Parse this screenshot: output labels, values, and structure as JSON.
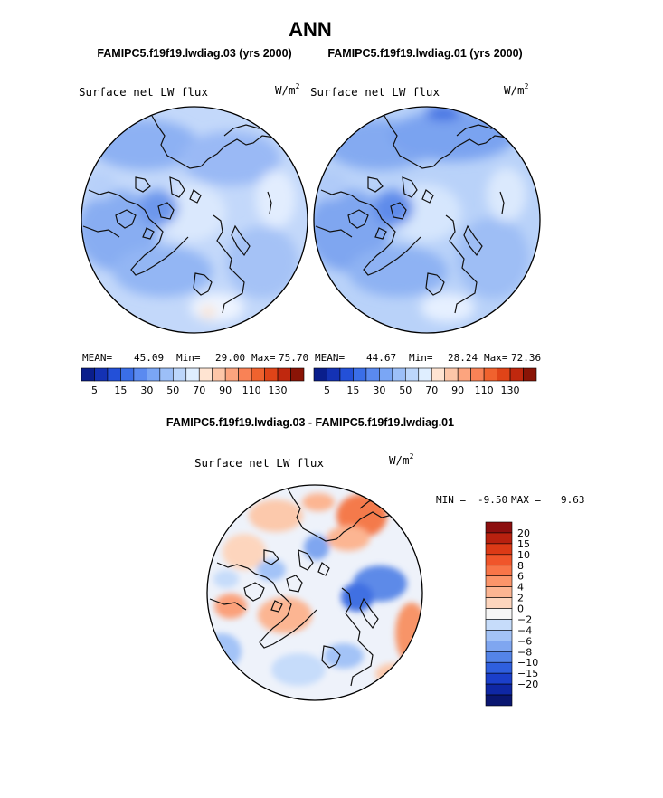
{
  "figure": {
    "title": "ANN",
    "left_panel_title": "FAMIPC5.f19f19.lwdiag.03 (yrs 2000)",
    "right_panel_title": "FAMIPC5.f19f19.lwdiag.01 (yrs 2000)",
    "diff_panel_title": "FAMIPC5.f19f19.lwdiag.03 - FAMIPC5.f19f19.lwdiag.01"
  },
  "chart_data": [
    {
      "type": "heatmap",
      "projection": "north-polar-stereographic",
      "variable": "Surface net LW flux",
      "units": "W/m",
      "units_exp": "2",
      "stats": {
        "mean_label": "MEAN=",
        "mean": "45.09",
        "min_label": "Min=",
        "min": "29.00",
        "max_label": "Max=",
        "max": "75.70"
      },
      "colorbar": {
        "levels": [
          5,
          10,
          15,
          20,
          25,
          30,
          35,
          40,
          50,
          60,
          70,
          80,
          90,
          100,
          110,
          120,
          130
        ],
        "tick_labels": [
          "5",
          "15",
          "30",
          "50",
          "70",
          "90",
          "110",
          "130"
        ],
        "colors": [
          "#0a1e8c",
          "#1432b4",
          "#2350d8",
          "#3a6ee8",
          "#5a8af0",
          "#7aa6f5",
          "#9cbff8",
          "#bcd6fb",
          "#dfeeff",
          "#ffe4d2",
          "#fdc6a8",
          "#fca47e",
          "#f98256",
          "#f0622e",
          "#e04418",
          "#c0280e",
          "#8a1406"
        ]
      },
      "fill_hint": "mostly 15-50 W/m2, light blue ocean and medium blue land"
    },
    {
      "type": "heatmap",
      "projection": "north-polar-stereographic",
      "variable": "Surface net LW flux",
      "units": "W/m",
      "units_exp": "2",
      "stats": {
        "mean_label": "MEAN=",
        "mean": "44.67",
        "min_label": "Min=",
        "min": "28.24",
        "max_label": "Max=",
        "max": "72.36"
      },
      "colorbar": {
        "levels": [
          5,
          10,
          15,
          20,
          25,
          30,
          35,
          40,
          50,
          60,
          70,
          80,
          90,
          100,
          110,
          120,
          130
        ],
        "tick_labels": [
          "5",
          "15",
          "30",
          "50",
          "70",
          "90",
          "110",
          "130"
        ],
        "colors": [
          "#0a1e8c",
          "#1432b4",
          "#2350d8",
          "#3a6ee8",
          "#5a8af0",
          "#7aa6f5",
          "#9cbff8",
          "#bcd6fb",
          "#dfeeff",
          "#ffe4d2",
          "#fdc6a8",
          "#fca47e",
          "#f98256",
          "#f0622e",
          "#e04418",
          "#c0280e",
          "#8a1406"
        ]
      },
      "fill_hint": "mostly 15-50 W/m2, slightly bluer than left panel"
    },
    {
      "type": "heatmap",
      "projection": "north-polar-stereographic",
      "variable": "Surface net LW flux",
      "units": "W/m",
      "units_exp": "2",
      "stats": {
        "min_label": "MIN =",
        "min": "-9.50",
        "max_label": "MAX =",
        "max": "9.63"
      },
      "colorbar": {
        "levels": [
          -20,
          -15,
          -10,
          -8,
          -6,
          -4,
          -2,
          0,
          2,
          4,
          6,
          8,
          10,
          15,
          20
        ],
        "tick_labels": [
          "20",
          "15",
          "10",
          "8",
          "6",
          "4",
          "2",
          "0",
          "−2",
          "−4",
          "−6",
          "−8",
          "−10",
          "−15",
          "−20"
        ],
        "colors": [
          "#8c0f0f",
          "#b8210f",
          "#dc3a16",
          "#f0552a",
          "#f87548",
          "#fb956a",
          "#fcb592",
          "#fdd5bd",
          "#f6f6f6",
          "#c6dcfa",
          "#a3c3f7",
          "#7fa6f0",
          "#5484e8",
          "#2f5fde",
          "#1b3fca",
          "#0f27a4",
          "#0a1670"
        ]
      },
      "fill_hint": "mixed positive (red) and negative (blue) anomalies, range about -9.5 to 9.6"
    }
  ]
}
